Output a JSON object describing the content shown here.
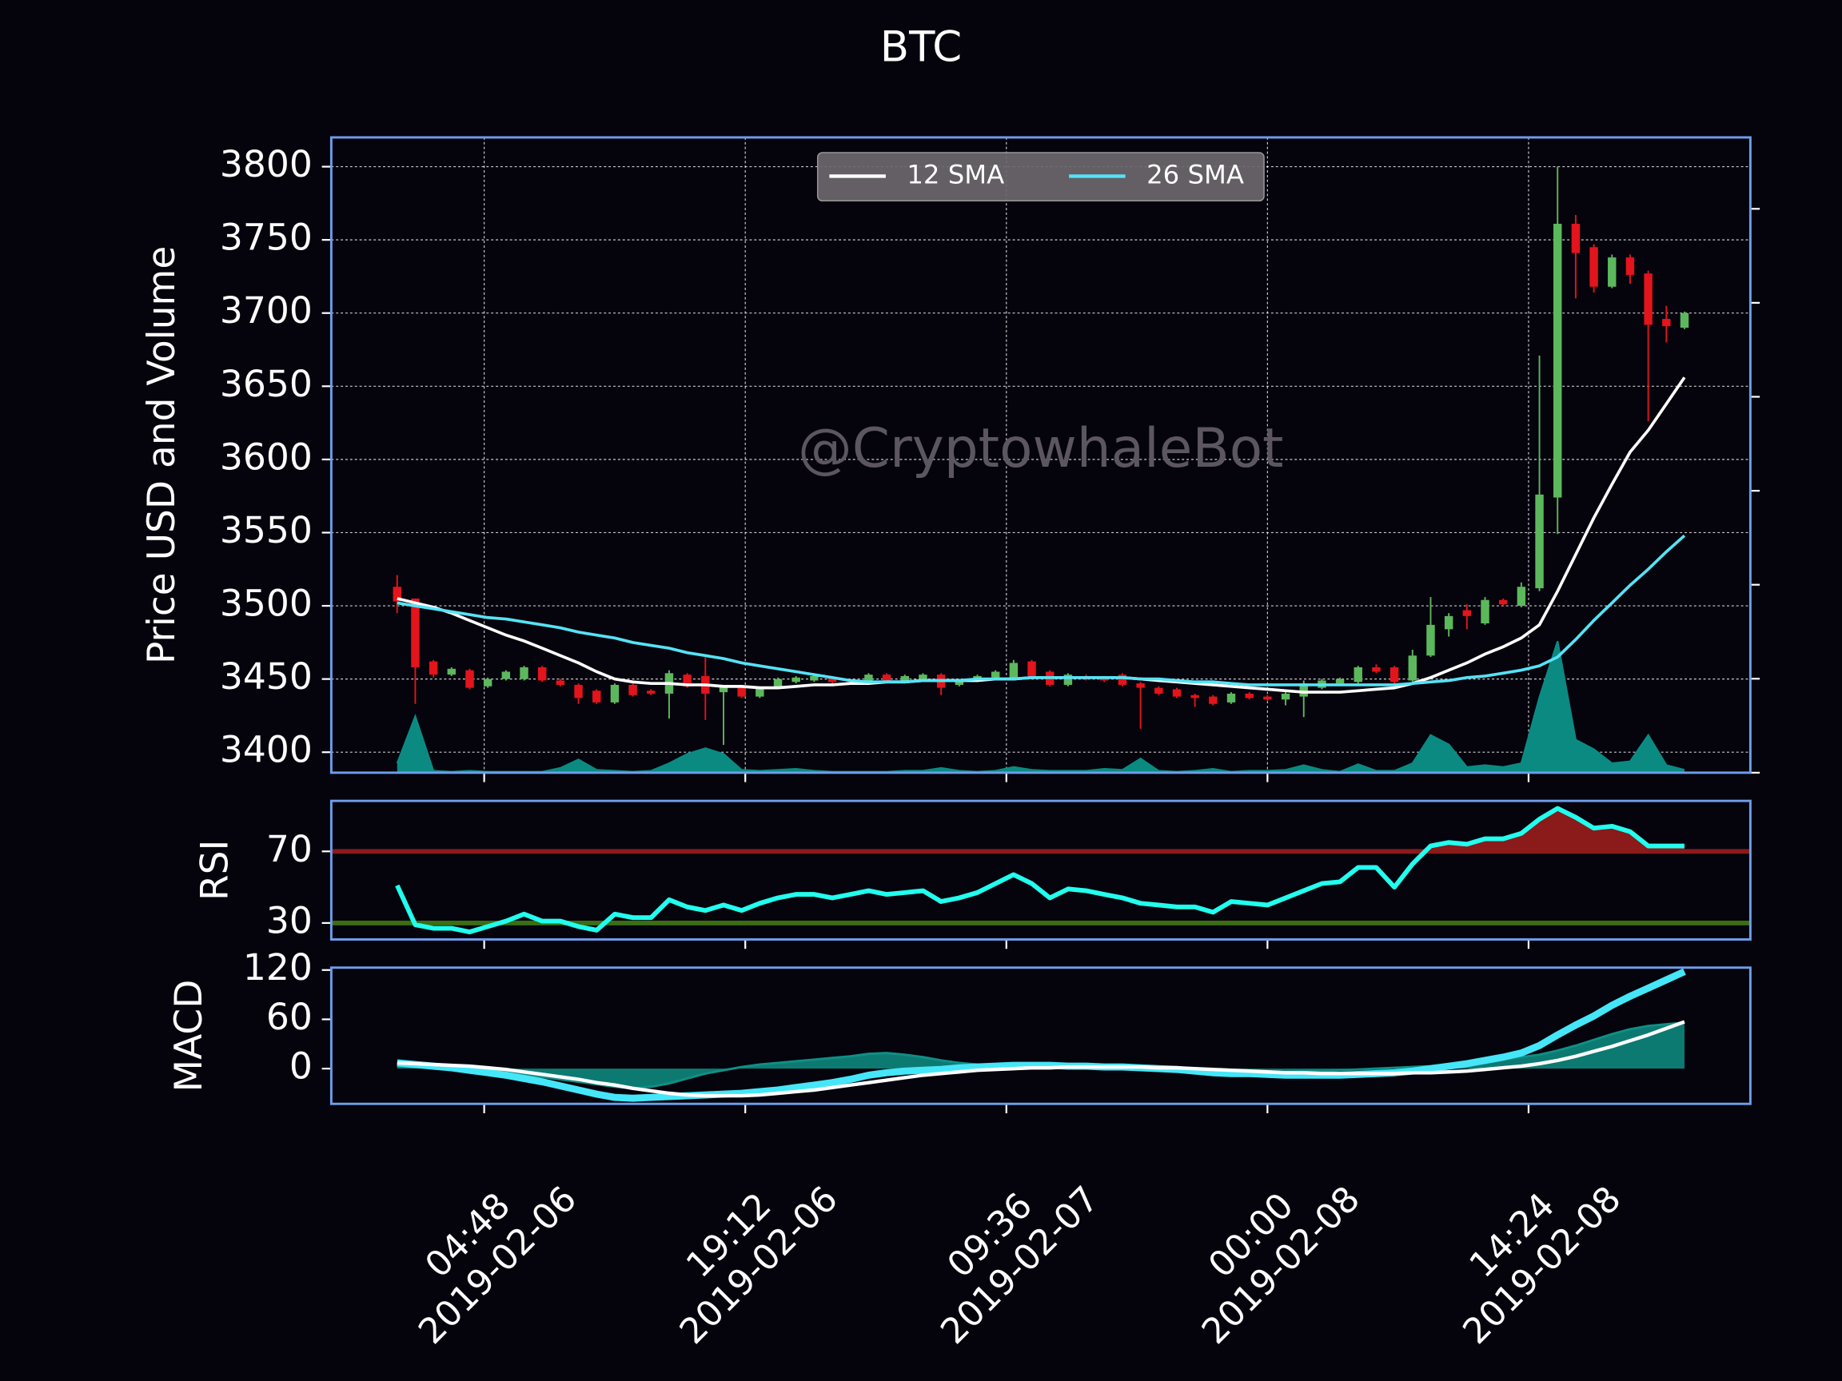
{
  "chart_data": [
    {
      "type": "candlestick",
      "title": "BTC",
      "ylabel": "Price USD and Volume",
      "watermark": "@CryptowhaleBot",
      "x": [
        "2019-02-06 00:00",
        "2019-02-06 01:00",
        "2019-02-06 02:00",
        "2019-02-06 03:00",
        "2019-02-06 04:00",
        "2019-02-06 05:00",
        "2019-02-06 06:00",
        "2019-02-06 07:00",
        "2019-02-06 08:00",
        "2019-02-06 09:00",
        "2019-02-06 10:00",
        "2019-02-06 11:00",
        "2019-02-06 12:00",
        "2019-02-06 13:00",
        "2019-02-06 14:00",
        "2019-02-06 15:00",
        "2019-02-06 16:00",
        "2019-02-06 17:00",
        "2019-02-06 18:00",
        "2019-02-06 19:00",
        "2019-02-06 20:00",
        "2019-02-06 21:00",
        "2019-02-06 22:00",
        "2019-02-06 23:00",
        "2019-02-07 00:00",
        "2019-02-07 01:00",
        "2019-02-07 02:00",
        "2019-02-07 03:00",
        "2019-02-07 04:00",
        "2019-02-07 05:00",
        "2019-02-07 06:00",
        "2019-02-07 07:00",
        "2019-02-07 08:00",
        "2019-02-07 09:00",
        "2019-02-07 10:00",
        "2019-02-07 11:00",
        "2019-02-07 12:00",
        "2019-02-07 13:00",
        "2019-02-07 14:00",
        "2019-02-07 15:00",
        "2019-02-07 16:00",
        "2019-02-07 17:00",
        "2019-02-07 18:00",
        "2019-02-07 19:00",
        "2019-02-07 20:00",
        "2019-02-07 21:00",
        "2019-02-07 22:00",
        "2019-02-07 23:00",
        "2019-02-08 00:00",
        "2019-02-08 01:00",
        "2019-02-08 02:00",
        "2019-02-08 03:00",
        "2019-02-08 04:00",
        "2019-02-08 05:00",
        "2019-02-08 06:00",
        "2019-02-08 07:00",
        "2019-02-08 08:00",
        "2019-02-08 09:00",
        "2019-02-08 10:00",
        "2019-02-08 11:00",
        "2019-02-08 12:00",
        "2019-02-08 13:00",
        "2019-02-08 14:00",
        "2019-02-08 15:00",
        "2019-02-08 16:00",
        "2019-02-08 17:00",
        "2019-02-08 18:00",
        "2019-02-08 19:00",
        "2019-02-08 20:00",
        "2019-02-08 21:00",
        "2019-02-08 22:00",
        "2019-02-08 23:00"
      ],
      "xlim": [
        "2019-02-05 20:22",
        "2019-02-09 02:38"
      ],
      "xticks": [
        {
          "value": "2019-02-06 04:48",
          "label": "04:48\n2019-02-06"
        },
        {
          "value": "2019-02-06 19:12",
          "label": "19:12\n2019-02-06"
        },
        {
          "value": "2019-02-07 09:36",
          "label": "09:36\n2019-02-07"
        },
        {
          "value": "2019-02-08 00:00",
          "label": "00:00\n2019-02-08"
        },
        {
          "value": "2019-02-08 14:24",
          "label": "14:24\n2019-02-08"
        }
      ],
      "ylim": [
        3386,
        3820
      ],
      "yticks": [
        3400,
        3450,
        3500,
        3550,
        3600,
        3650,
        3700,
        3750,
        3800
      ],
      "grid": true,
      "up_color": "#5cb85c",
      "down_color": "#e3141b",
      "open": [
        3513,
        3505,
        3462,
        3453,
        3456,
        3445,
        3450,
        3450,
        3458,
        3449,
        3446,
        3442,
        3434,
        3446,
        3442,
        3440,
        3453,
        3452,
        3441,
        3444,
        3438,
        3444,
        3448,
        3449,
        3451,
        3448,
        3447,
        3453,
        3448,
        3450,
        3453,
        3446,
        3449,
        3451,
        3450,
        3462,
        3455,
        3446,
        3452,
        3451,
        3453,
        3447,
        3444,
        3443,
        3439,
        3438,
        3434,
        3440,
        3438,
        3436,
        3438,
        3444,
        3447,
        3448,
        3458,
        3458,
        3449,
        3466,
        3484,
        3497,
        3488,
        3504,
        3500,
        3512,
        3574,
        3761,
        3745,
        3718,
        3738,
        3727,
        3696,
        3690
      ],
      "high": [
        3521,
        3505,
        3463,
        3458,
        3457,
        3451,
        3456,
        3459,
        3459,
        3450,
        3447,
        3443,
        3447,
        3447,
        3443,
        3456,
        3454,
        3465,
        3446,
        3445,
        3445,
        3451,
        3452,
        3453,
        3452,
        3449,
        3454,
        3454,
        3453,
        3454,
        3454,
        3450,
        3453,
        3456,
        3463,
        3463,
        3456,
        3454,
        3453,
        3452,
        3454,
        3448,
        3445,
        3444,
        3440,
        3439,
        3441,
        3441,
        3439,
        3441,
        3449,
        3450,
        3451,
        3459,
        3460,
        3459,
        3470,
        3506,
        3495,
        3501,
        3506,
        3505,
        3516,
        3671,
        3800,
        3767,
        3747,
        3740,
        3740,
        3729,
        3705,
        3701
      ],
      "low": [
        3495,
        3433,
        3451,
        3452,
        3443,
        3444,
        3449,
        3449,
        3448,
        3445,
        3433,
        3433,
        3433,
        3438,
        3439,
        3423,
        3444,
        3422,
        3405,
        3437,
        3437,
        3443,
        3447,
        3448,
        3447,
        3446,
        3446,
        3447,
        3447,
        3449,
        3439,
        3445,
        3448,
        3450,
        3449,
        3451,
        3445,
        3445,
        3449,
        3448,
        3445,
        3416,
        3439,
        3437,
        3431,
        3432,
        3433,
        3436,
        3435,
        3432,
        3424,
        3443,
        3446,
        3447,
        3454,
        3447,
        3448,
        3465,
        3479,
        3484,
        3487,
        3500,
        3499,
        3510,
        3549,
        3710,
        3714,
        3717,
        3720,
        3626,
        3680,
        3689
      ],
      "close": [
        3503,
        3458,
        3453,
        3457,
        3444,
        3450,
        3455,
        3458,
        3449,
        3446,
        3437,
        3434,
        3446,
        3439,
        3440,
        3454,
        3445,
        3440,
        3445,
        3438,
        3444,
        3450,
        3451,
        3452,
        3448,
        3447,
        3453,
        3448,
        3452,
        3453,
        3444,
        3449,
        3452,
        3455,
        3461,
        3452,
        3446,
        3453,
        3450,
        3449,
        3446,
        3444,
        3440,
        3438,
        3437,
        3433,
        3440,
        3437,
        3436,
        3440,
        3447,
        3449,
        3450,
        3458,
        3455,
        3448,
        3466,
        3487,
        3493,
        3493,
        3504,
        3501,
        3513,
        3576,
        3761,
        3741,
        3718,
        3738,
        3726,
        3692,
        3691,
        3700
      ],
      "series": [
        {
          "name": "12 SMA",
          "color": "#ffffff",
          "values": [
            3505,
            3502,
            3499,
            3495,
            3490,
            3485,
            3480,
            3476,
            3471,
            3466,
            3461,
            3455,
            3450,
            3448,
            3447,
            3447,
            3446,
            3446,
            3445,
            3445,
            3444,
            3444,
            3445,
            3446,
            3446,
            3447,
            3447,
            3448,
            3448,
            3449,
            3449,
            3449,
            3449,
            3450,
            3450,
            3451,
            3451,
            3451,
            3451,
            3451,
            3451,
            3450,
            3449,
            3448,
            3447,
            3446,
            3445,
            3444,
            3443,
            3442,
            3441,
            3441,
            3441,
            3442,
            3443,
            3444,
            3447,
            3451,
            3456,
            3461,
            3467,
            3472,
            3478,
            3487,
            3510,
            3535,
            3560,
            3583,
            3605,
            3620,
            3638,
            3656
          ]
        },
        {
          "name": "26 SMA",
          "color": "#55e3f5",
          "values": [
            3502,
            3500,
            3498,
            3496,
            3494,
            3492,
            3491,
            3489,
            3487,
            3485,
            3482,
            3480,
            3478,
            3475,
            3473,
            3471,
            3468,
            3466,
            3464,
            3461,
            3459,
            3457,
            3455,
            3453,
            3451,
            3449,
            3448,
            3448,
            3448,
            3449,
            3449,
            3449,
            3450,
            3450,
            3450,
            3451,
            3451,
            3451,
            3451,
            3451,
            3451,
            3450,
            3450,
            3449,
            3448,
            3448,
            3447,
            3446,
            3446,
            3446,
            3446,
            3446,
            3446,
            3446,
            3446,
            3446,
            3447,
            3448,
            3449,
            3451,
            3452,
            3454,
            3456,
            3459,
            3465,
            3477,
            3490,
            3502,
            3514,
            3525,
            3537,
            3548
          ]
        }
      ],
      "legend": "upper center",
      "volume": {
        "color": "#0b8a82",
        "axis": "y2",
        "values": [
          10,
          60,
          2,
          1,
          2,
          1,
          1,
          1,
          1,
          5,
          14,
          3,
          2,
          1,
          2,
          10,
          20,
          26,
          20,
          3,
          2,
          3,
          4,
          2,
          1,
          1,
          1,
          1,
          2,
          2,
          5,
          2,
          1,
          2,
          6,
          3,
          2,
          2,
          2,
          4,
          3,
          15,
          2,
          1,
          2,
          4,
          1,
          2,
          2,
          3,
          8,
          3,
          1,
          9,
          2,
          2,
          10,
          40,
          30,
          6,
          8,
          6,
          10,
          80,
          140,
          35,
          25,
          10,
          12,
          40,
          8,
          3
        ]
      },
      "y2lim": [
        0,
        676
      ],
      "y2ticks": [
        0,
        100,
        200,
        300,
        400,
        500,
        600
      ]
    },
    {
      "type": "line",
      "ylabel": "RSI",
      "ylim": [
        20.8,
        98.2
      ],
      "yticks": [
        30,
        70
      ],
      "hlines": [
        {
          "value": 70,
          "color": "#8b1a1a",
          "fill": "above"
        },
        {
          "value": 30,
          "color": "#3b6e12"
        }
      ],
      "series": [
        {
          "color": "#22ffee",
          "values": [
            51,
            29,
            27,
            27,
            25,
            28,
            31,
            35,
            31,
            31,
            28,
            26,
            35,
            33,
            33,
            43,
            39,
            37,
            40,
            37,
            41,
            44,
            46,
            46,
            44,
            46,
            48,
            46,
            47,
            48,
            42,
            44,
            47,
            52,
            57,
            52,
            44,
            49,
            48,
            46,
            44,
            41,
            40,
            39,
            39,
            36,
            42,
            41,
            40,
            44,
            48,
            52,
            53,
            61,
            61,
            50,
            63,
            73,
            75,
            74,
            77,
            77,
            80,
            88,
            94,
            89,
            83,
            84,
            81,
            73,
            73,
            73
          ]
        }
      ]
    },
    {
      "type": "line",
      "ylabel": "MACD",
      "ylim": [
        -42.9,
        122.9
      ],
      "yticks": [
        0,
        60,
        120
      ],
      "series": [
        {
          "color": "#0f8f85",
          "fill": true,
          "values": [
            3,
            2,
            1,
            0,
            -2,
            -4,
            -6,
            -8,
            -10,
            -13,
            -16,
            -19,
            -22,
            -24,
            -22,
            -18,
            -12,
            -6,
            -2,
            2,
            5,
            7,
            9,
            11,
            13,
            15,
            18,
            19,
            17,
            14,
            10,
            7,
            5,
            4,
            3,
            3,
            3,
            2,
            2,
            2,
            2,
            1,
            0,
            -1,
            -2,
            -3,
            -4,
            -4,
            -4,
            -4,
            -3,
            -3,
            -2,
            -1,
            0,
            1,
            2,
            3,
            5,
            7,
            9,
            11,
            14,
            17,
            22,
            28,
            35,
            42,
            48,
            52,
            54,
            56
          ]
        },
        {
          "color": "#45e6f7",
          "values": [
            7,
            5,
            3,
            1,
            -2,
            -5,
            -8,
            -12,
            -16,
            -21,
            -26,
            -31,
            -35,
            -36,
            -35,
            -34,
            -33,
            -32,
            -31,
            -30,
            -28,
            -26,
            -23,
            -20,
            -17,
            -13,
            -8,
            -5,
            -3,
            -2,
            -1,
            1,
            2,
            3,
            4,
            4,
            4,
            3,
            3,
            2,
            2,
            1,
            0,
            -1,
            -3,
            -5,
            -6,
            -6,
            -7,
            -8,
            -8,
            -8,
            -8,
            -7,
            -6,
            -5,
            -3,
            0,
            3,
            6,
            10,
            14,
            19,
            28,
            41,
            53,
            64,
            77,
            88,
            98,
            108,
            118
          ]
        },
        {
          "color": "#ffffff",
          "values": [
            7,
            6,
            5,
            4,
            3,
            1,
            -1,
            -4,
            -7,
            -10,
            -13,
            -17,
            -20,
            -24,
            -27,
            -30,
            -32,
            -33,
            -33,
            -33,
            -32,
            -30,
            -28,
            -26,
            -23,
            -20,
            -17,
            -14,
            -11,
            -8,
            -6,
            -4,
            -2,
            -1,
            0,
            1,
            1,
            2,
            2,
            2,
            2,
            2,
            1,
            1,
            0,
            -1,
            -2,
            -3,
            -4,
            -5,
            -5,
            -6,
            -6,
            -6,
            -6,
            -6,
            -5,
            -5,
            -4,
            -3,
            -1,
            1,
            3,
            6,
            10,
            15,
            21,
            27,
            34,
            41,
            49,
            57
          ]
        }
      ]
    }
  ]
}
